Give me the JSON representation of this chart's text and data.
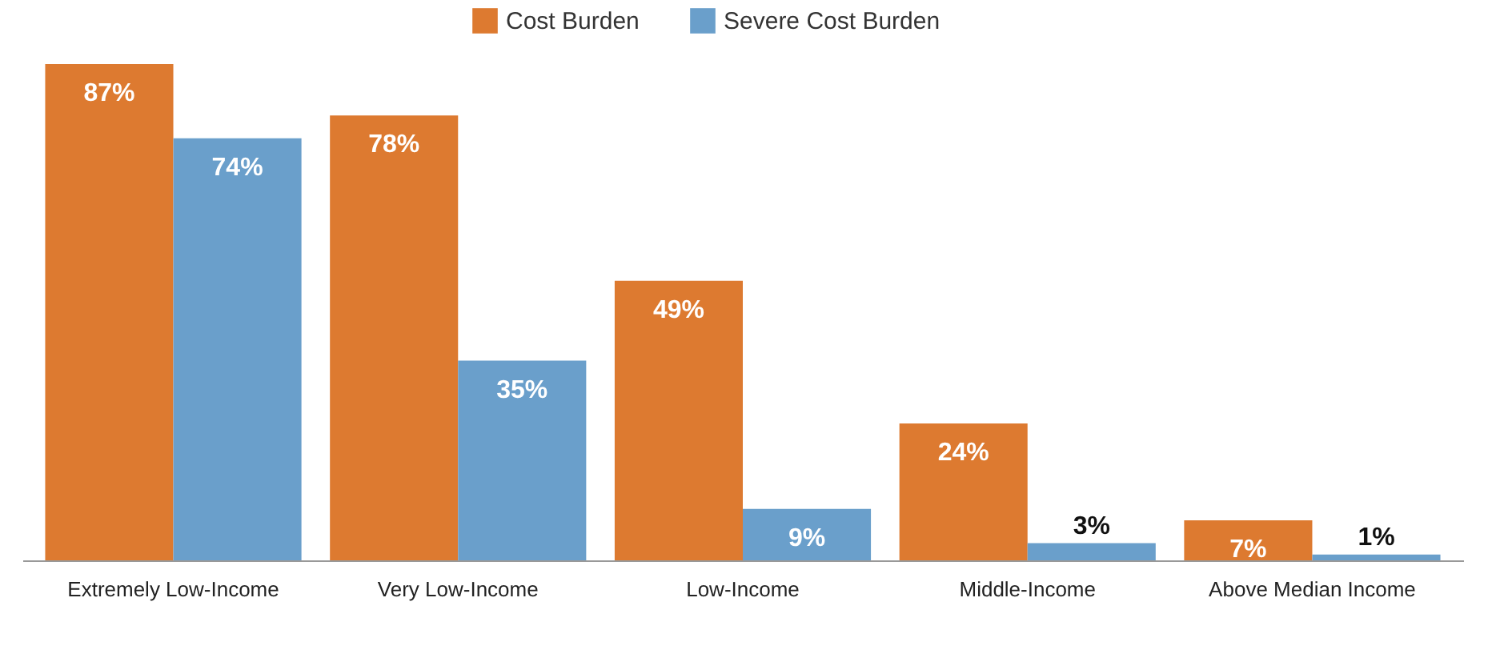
{
  "chart_data": {
    "type": "bar",
    "categories": [
      "Extremely Low-Income",
      "Very Low-Income",
      "Low-Income",
      "Middle-Income",
      "Above Median Income"
    ],
    "series": [
      {
        "name": "Cost Burden",
        "color": "#dd7a30",
        "values": [
          87,
          78,
          49,
          24,
          7
        ],
        "value_labels": [
          "87%",
          "78%",
          "49%",
          "24%",
          "7%"
        ]
      },
      {
        "name": "Severe Cost Burden",
        "color": "#6a9fcb",
        "values": [
          74,
          35,
          9,
          3,
          1
        ],
        "value_labels": [
          "74%",
          "35%",
          "9%",
          "3%",
          "1%"
        ]
      }
    ],
    "legend": "top",
    "grid": false
  }
}
